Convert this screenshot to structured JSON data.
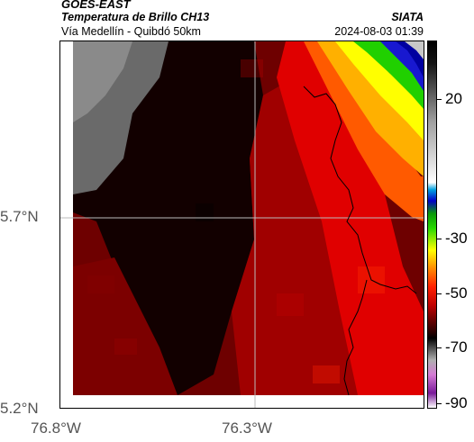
{
  "header": {
    "title": "GOES-EAST",
    "subtitle_product": "Temperatura de Brillo CH13",
    "organization": "SIATA",
    "region": "Vía Medellín - Quibdó 50km",
    "datetime": "2024-08-03 01:39"
  },
  "axes": {
    "lat_labels": [
      "5.7°N",
      "5.2°N"
    ],
    "lon_labels": [
      "76.8°W",
      "76.3°W"
    ]
  },
  "colorbar": {
    "labels": [
      "20",
      "-30",
      "-50",
      "-70",
      "-90"
    ]
  },
  "palette": {
    "dark": "#1a0000",
    "red": "#d00000",
    "orange": "#ff8000",
    "yellow": "#ffff00",
    "green": "#20d000",
    "blue": "#0000c0",
    "gray": "#9a9a9a"
  }
}
